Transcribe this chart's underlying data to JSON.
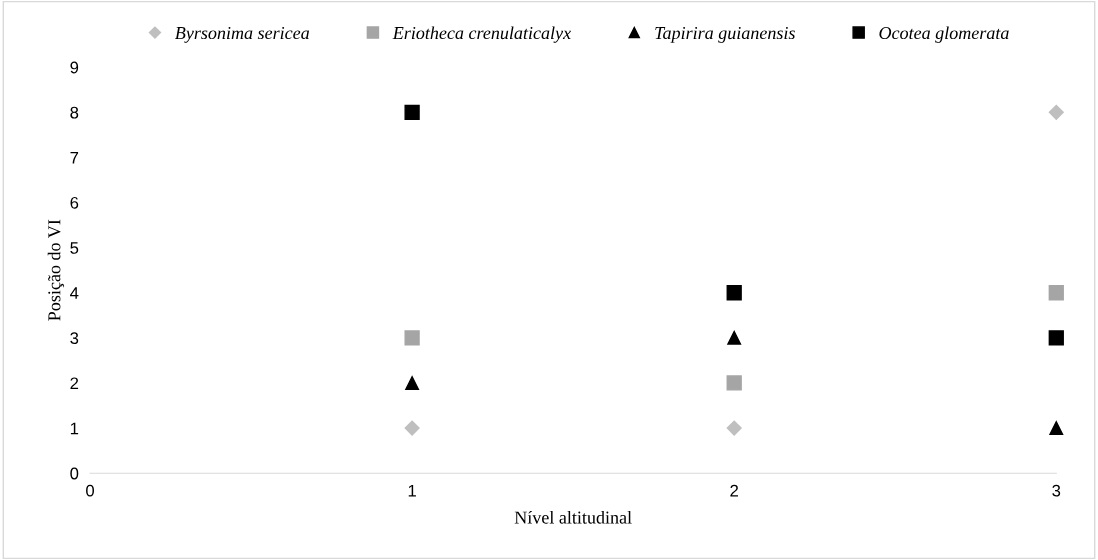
{
  "chart_data": {
    "type": "scatter",
    "xlabel": "Nível altitudinal",
    "ylabel": "Posição do VI",
    "x": [
      1,
      2,
      3
    ],
    "xlim": [
      0,
      3
    ],
    "xticks": [
      0,
      1,
      2,
      3
    ],
    "ylim": [
      0,
      9
    ],
    "yticks": [
      0,
      1,
      2,
      3,
      4,
      5,
      6,
      7,
      8,
      9
    ],
    "grid": false,
    "legend": "top",
    "series": [
      {
        "name": "Byrsonima sericea",
        "color": "#bfbfbf",
        "marker": "diamond",
        "values": [
          1,
          1,
          8
        ]
      },
      {
        "name": "Eriotheca crenulaticalyx",
        "color": "#a5a5a5",
        "marker": "square",
        "values": [
          3,
          2,
          4
        ]
      },
      {
        "name": "Tapirira guianensis",
        "color": "#000000",
        "marker": "triangle",
        "values": [
          2,
          3,
          1
        ]
      },
      {
        "name": "Ocotea glomerata",
        "color": "#000000",
        "marker": "square",
        "values": [
          8,
          4,
          3
        ]
      }
    ]
  }
}
